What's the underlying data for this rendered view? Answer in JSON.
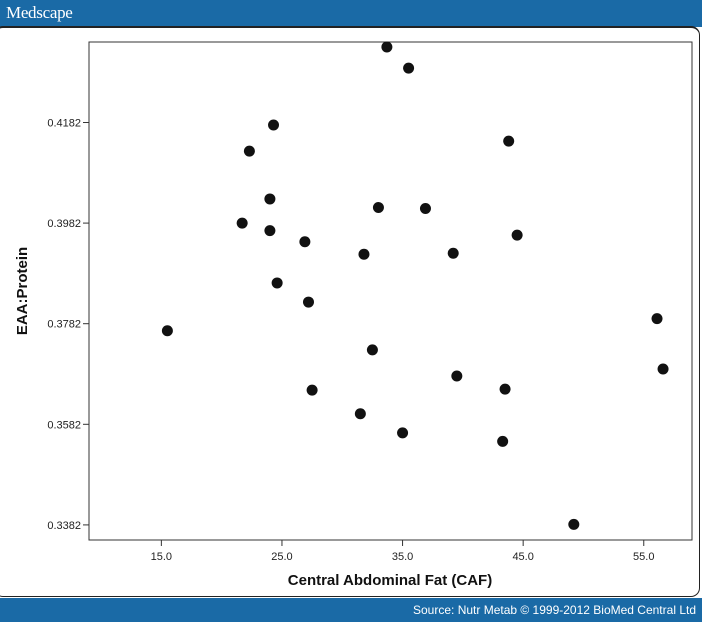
{
  "header": {
    "brand": "Medscape"
  },
  "footer": {
    "source": "Source: Nutr Metab © 1999-2012 BioMed Central Ltd"
  },
  "colors": {
    "bar": "#1a6aa6",
    "point": "#111111"
  },
  "chart_data": {
    "type": "scatter",
    "title": "",
    "xlabel": "Central Abdominal Fat (CAF)",
    "ylabel": "EAA:Protein",
    "xlim": [
      9.0,
      59.0
    ],
    "ylim": [
      0.3352,
      0.4342
    ],
    "x_ticks": [
      15.0,
      25.0,
      35.0,
      45.0,
      55.0
    ],
    "x_tick_labels": [
      "15.0",
      "25.0",
      "35.0",
      "45.0",
      "55.0"
    ],
    "y_ticks": [
      0.3382,
      0.3582,
      0.3782,
      0.3982,
      0.4182
    ],
    "y_tick_labels": [
      "0.3382",
      "0.3582",
      "0.3782",
      "0.3982",
      "0.4182"
    ],
    "grid": false,
    "points": [
      {
        "x": 15.5,
        "y": 0.3768
      },
      {
        "x": 21.7,
        "y": 0.3982
      },
      {
        "x": 22.3,
        "y": 0.4125
      },
      {
        "x": 24.0,
        "y": 0.403
      },
      {
        "x": 24.0,
        "y": 0.3967
      },
      {
        "x": 24.3,
        "y": 0.4177
      },
      {
        "x": 24.6,
        "y": 0.3863
      },
      {
        "x": 26.9,
        "y": 0.3945
      },
      {
        "x": 27.2,
        "y": 0.3825
      },
      {
        "x": 27.5,
        "y": 0.365
      },
      {
        "x": 31.5,
        "y": 0.3603
      },
      {
        "x": 31.8,
        "y": 0.392
      },
      {
        "x": 32.5,
        "y": 0.373
      },
      {
        "x": 33.0,
        "y": 0.4013
      },
      {
        "x": 33.7,
        "y": 0.4332
      },
      {
        "x": 35.0,
        "y": 0.3565
      },
      {
        "x": 35.5,
        "y": 0.429
      },
      {
        "x": 36.9,
        "y": 0.4011
      },
      {
        "x": 39.2,
        "y": 0.3922
      },
      {
        "x": 39.5,
        "y": 0.3678
      },
      {
        "x": 43.3,
        "y": 0.3548
      },
      {
        "x": 43.5,
        "y": 0.3652
      },
      {
        "x": 43.8,
        "y": 0.4145
      },
      {
        "x": 44.5,
        "y": 0.3958
      },
      {
        "x": 49.2,
        "y": 0.3383
      },
      {
        "x": 56.1,
        "y": 0.3792
      },
      {
        "x": 56.6,
        "y": 0.3692
      }
    ]
  }
}
